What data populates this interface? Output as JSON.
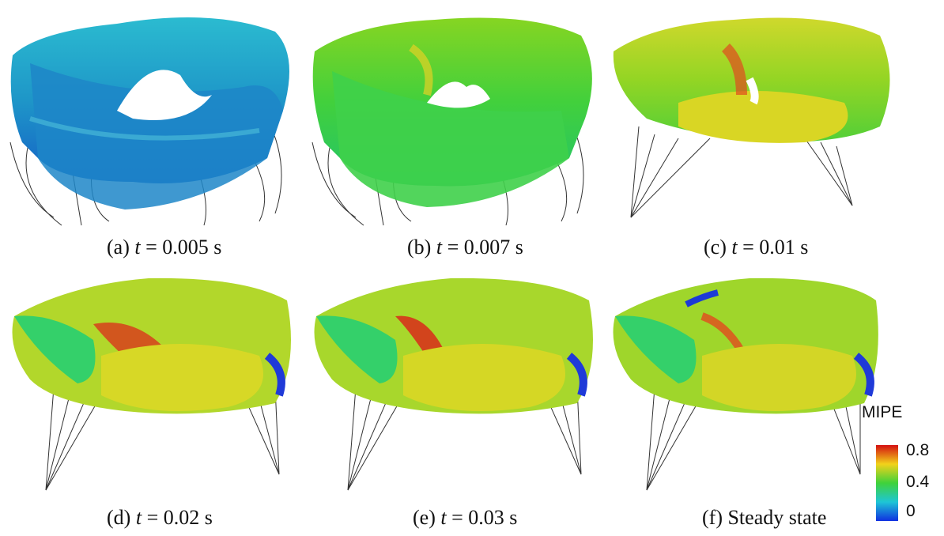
{
  "panels": [
    {
      "caption_pre": "(a) ",
      "caption_var": "t",
      "caption_post": " = 0.005 s",
      "fill_top": "#2aa7c9",
      "fill_mid": "#1f8fc9",
      "fill_low": "#1766c7"
    },
    {
      "caption_pre": "(b) ",
      "caption_var": "t",
      "caption_post": " = 0.007 s",
      "fill_top": "#7fd421",
      "fill_mid": "#3fd13b",
      "fill_low": "#22c26a"
    },
    {
      "caption_pre": "(c) ",
      "caption_var": "t",
      "caption_post": " = 0.01 s",
      "fill_top": "#c9d62b",
      "fill_mid": "#8fd424",
      "fill_low": "#4fcf38"
    },
    {
      "caption_pre": "(d) ",
      "caption_var": "t",
      "caption_post": " = 0.02 s",
      "fill_top": "#c7d52a",
      "fill_mid": "#8cd31f",
      "fill_low": "#d9d922"
    },
    {
      "caption_pre": "(e) ",
      "caption_var": "t",
      "caption_post": " = 0.03 s",
      "fill_top": "#b8d82a",
      "fill_mid": "#7fd32a",
      "fill_low": "#d4d624"
    },
    {
      "caption_pre": "(f) Steady state",
      "caption_var": "",
      "caption_post": "",
      "fill_top": "#a9d728",
      "fill_mid": "#7cd12a",
      "fill_low": "#d3d628"
    }
  ],
  "colorbar": {
    "title": "MIPE",
    "max_label": "0.8",
    "mid_label": "0.4",
    "min_label": "0",
    "colors": [
      "#d41010",
      "#f2d21a",
      "#3fd23a",
      "#1ec6d6",
      "#1030e0"
    ]
  }
}
